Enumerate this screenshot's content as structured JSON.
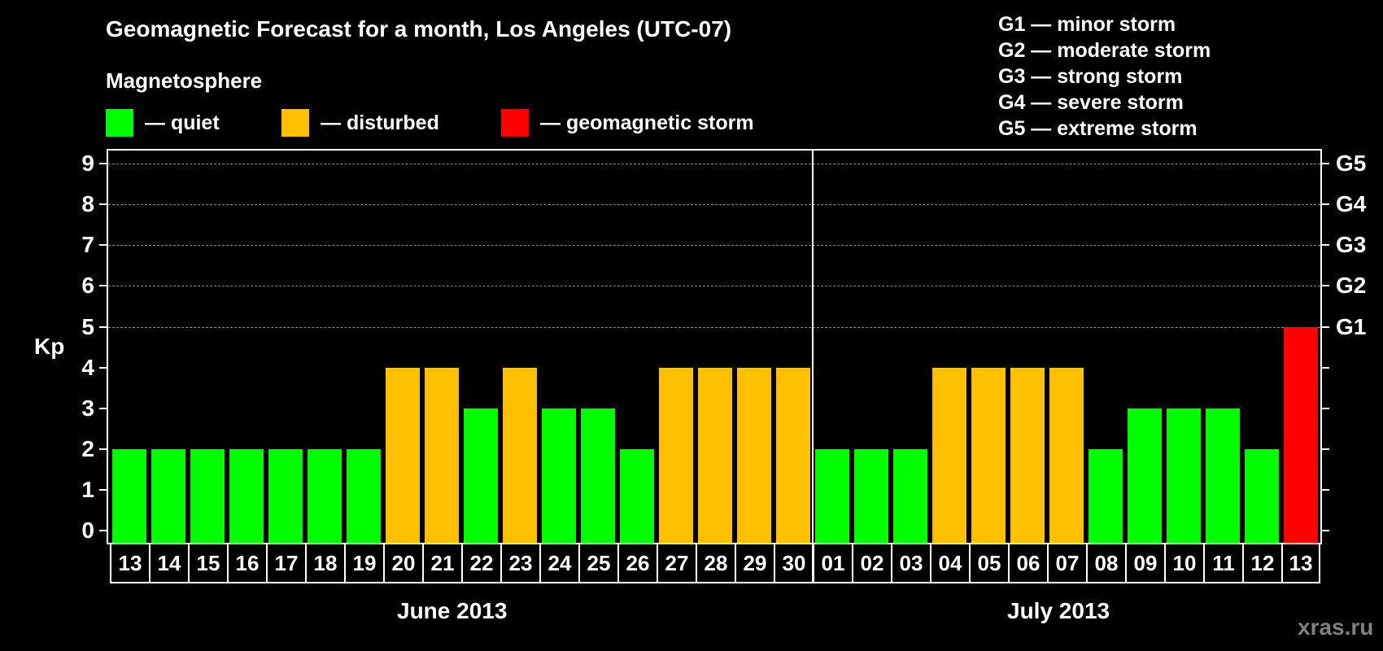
{
  "title": "Geomagnetic Forecast for a month, Los Angeles (UTC-07)",
  "legend": {
    "heading": "Magnetosphere",
    "items": [
      {
        "label": "— quiet",
        "color": "#00ff00"
      },
      {
        "label": "— disturbed",
        "color": "#ffc000"
      },
      {
        "label": "— geomagnetic storm",
        "color": "#ff0000"
      }
    ]
  },
  "storm_scale": [
    "G1 — minor storm",
    "G2 — moderate storm",
    "G3 — strong storm",
    "G4 — severe storm",
    "G5 — extreme storm"
  ],
  "axes": {
    "ylabel": "Kp",
    "yticks": [
      "0",
      "1",
      "2",
      "3",
      "4",
      "5",
      "6",
      "7",
      "8",
      "9"
    ],
    "right_ticks": [
      {
        "kp": 5,
        "label": "G1"
      },
      {
        "kp": 6,
        "label": "G2"
      },
      {
        "kp": 7,
        "label": "G3"
      },
      {
        "kp": 8,
        "label": "G4"
      },
      {
        "kp": 9,
        "label": "G5"
      }
    ],
    "months": [
      "June 2013",
      "July 2013"
    ]
  },
  "watermark": "xras.ru",
  "colors": {
    "quiet": "#00ff00",
    "disturbed": "#ffc000",
    "storm": "#ff0000"
  },
  "chart_data": {
    "type": "bar",
    "title": "Geomagnetic Forecast for a month, Los Angeles (UTC-07)",
    "xlabel": "",
    "ylabel": "Kp",
    "ylim": [
      0,
      9
    ],
    "grid": "dashed horizontal lines at Kp 5-9",
    "legend_position": "top",
    "categories": [
      "13",
      "14",
      "15",
      "16",
      "17",
      "18",
      "19",
      "20",
      "21",
      "22",
      "23",
      "24",
      "25",
      "26",
      "27",
      "28",
      "29",
      "30",
      "01",
      "02",
      "03",
      "04",
      "05",
      "06",
      "07",
      "08",
      "09",
      "10",
      "11",
      "12",
      "13"
    ],
    "month_groups": [
      {
        "label": "June 2013",
        "from": 0,
        "to": 17
      },
      {
        "label": "July 2013",
        "from": 18,
        "to": 30
      }
    ],
    "values": [
      2,
      2,
      2,
      2,
      2,
      2,
      2,
      4,
      4,
      3,
      4,
      3,
      3,
      2,
      4,
      4,
      4,
      4,
      2,
      2,
      2,
      4,
      4,
      4,
      4,
      2,
      3,
      3,
      3,
      2,
      5
    ],
    "status": [
      "quiet",
      "quiet",
      "quiet",
      "quiet",
      "quiet",
      "quiet",
      "quiet",
      "disturbed",
      "disturbed",
      "quiet",
      "disturbed",
      "quiet",
      "quiet",
      "quiet",
      "disturbed",
      "disturbed",
      "disturbed",
      "disturbed",
      "quiet",
      "quiet",
      "quiet",
      "disturbed",
      "disturbed",
      "disturbed",
      "disturbed",
      "quiet",
      "quiet",
      "quiet",
      "quiet",
      "quiet",
      "storm"
    ],
    "right_axis": {
      "5": "G1",
      "6": "G2",
      "7": "G3",
      "8": "G4",
      "9": "G5"
    }
  }
}
